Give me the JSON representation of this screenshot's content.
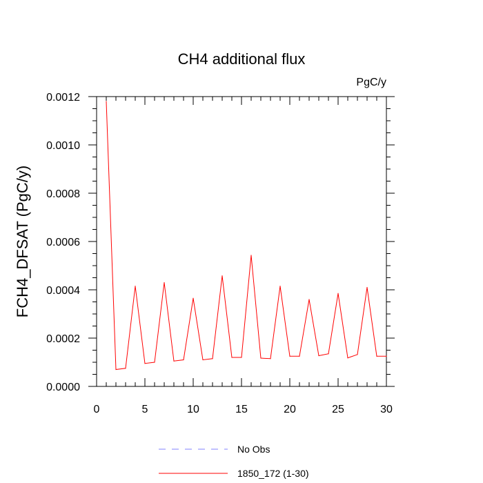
{
  "chart_data": {
    "type": "line",
    "title": "CH4 additional flux",
    "units_label": "PgC/y",
    "ylabel": "FCH4_DFSAT  (PgC/y)",
    "xlabel": "",
    "xlim": [
      0,
      30
    ],
    "ylim": [
      0,
      0.0012
    ],
    "x_ticks": [
      0,
      5,
      10,
      15,
      20,
      25,
      30
    ],
    "x_tick_labels": [
      "0",
      "5",
      "10",
      "15",
      "20",
      "25",
      "30"
    ],
    "y_ticks": [
      0,
      0.0002,
      0.0004,
      0.0006,
      0.0008,
      0.001,
      0.0012
    ],
    "y_tick_labels": [
      "0.0000",
      "0.0002",
      "0.0004",
      "0.0006",
      "0.0008",
      "0.0010",
      "0.0012"
    ],
    "grid": false,
    "legend_position": "bottom",
    "series": [
      {
        "name": "No Obs",
        "color": "#8080ff",
        "dash": "dashed",
        "x": [],
        "y": []
      },
      {
        "name": "1850_172 (1-30)",
        "color": "#ff0000",
        "dash": "solid",
        "x": [
          1,
          2,
          3,
          4,
          5,
          6,
          7,
          8,
          9,
          10,
          11,
          12,
          13,
          14,
          15,
          16,
          17,
          18,
          19,
          20,
          21,
          22,
          23,
          24,
          25,
          26,
          27,
          28,
          29,
          30
        ],
        "y": [
          0.00118,
          7e-05,
          7.5e-05,
          0.000415,
          9.5e-05,
          0.0001,
          0.00043,
          0.000105,
          0.00011,
          0.000365,
          0.00011,
          0.000115,
          0.000458,
          0.00012,
          0.00012,
          0.000543,
          0.000117,
          0.000115,
          0.000415,
          0.000125,
          0.000125,
          0.00036,
          0.000127,
          0.000135,
          0.000385,
          0.000118,
          0.000132,
          0.00041,
          0.000125,
          0.000125
        ]
      }
    ]
  }
}
